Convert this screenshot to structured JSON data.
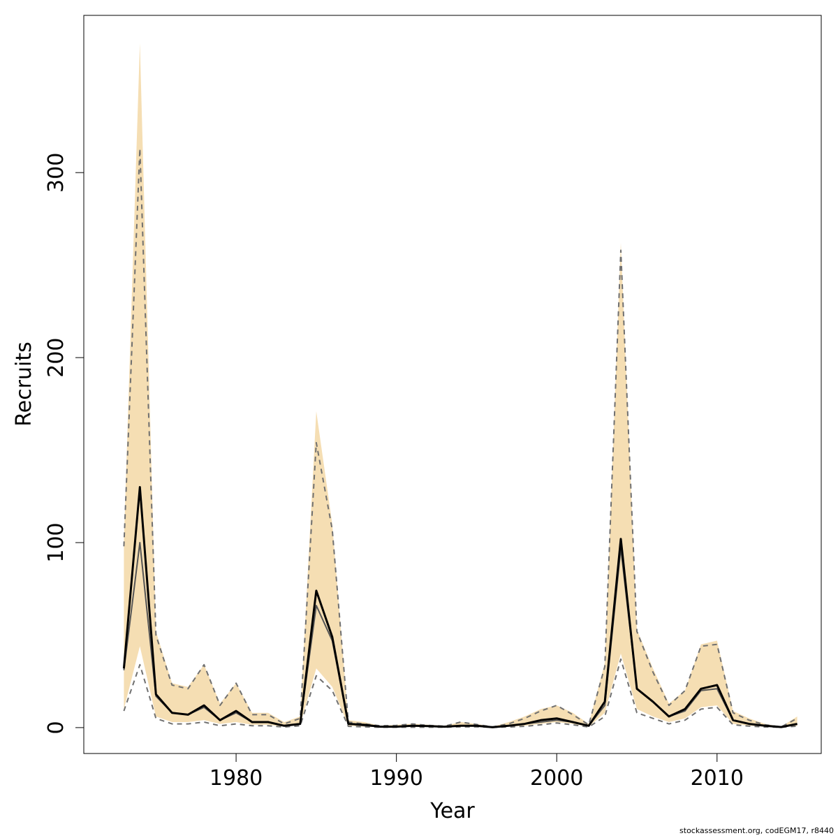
{
  "chart_data": {
    "type": "line",
    "title": "",
    "xlabel": "Year",
    "ylabel": "Recruits",
    "xlim": [
      1970.5,
      2016.5
    ],
    "ylim": [
      -14,
      385
    ],
    "x_ticks": [
      1980,
      1990,
      2000,
      2010
    ],
    "y_ticks": [
      0,
      100,
      200,
      300
    ],
    "grid": false,
    "legend": "none",
    "x": [
      1973,
      1974,
      1975,
      1976,
      1977,
      1978,
      1979,
      1980,
      1981,
      1982,
      1983,
      1984,
      1985,
      1986,
      1987,
      1988,
      1989,
      1990,
      1991,
      1992,
      1993,
      1994,
      1995,
      1996,
      1997,
      1998,
      1999,
      2000,
      2001,
      2002,
      2003,
      2004,
      2005,
      2006,
      2007,
      2008,
      2009,
      2010,
      2011,
      2012,
      2013,
      2014,
      2015
    ],
    "series": [
      {
        "role": "confidence-band",
        "color": "#f5deb3",
        "lower": [
          10,
          44,
          6,
          3,
          3,
          4,
          2,
          3,
          1.5,
          1.5,
          0.5,
          1.5,
          32,
          22,
          1,
          0.5,
          0.3,
          0.3,
          0.3,
          0.3,
          0.3,
          0.5,
          0.5,
          0.3,
          0.5,
          1,
          2,
          3,
          2,
          0.5,
          8,
          40,
          10,
          6,
          3,
          5,
          11,
          12,
          2,
          1,
          0.5,
          0.3,
          1
        ],
        "upper": [
          100,
          370,
          52,
          24,
          22,
          34,
          13,
          24,
          8,
          8,
          3,
          6,
          171,
          110,
          4,
          3,
          1,
          1.5,
          2,
          1.5,
          1,
          3,
          2,
          0.5,
          3,
          6,
          10,
          12,
          8,
          2,
          35,
          262,
          53,
          32,
          13,
          20,
          45,
          47,
          9,
          5,
          2,
          0.5,
          6
        ]
      },
      {
        "role": "upper-dashed",
        "color": "#707070",
        "values": [
          98,
          313,
          50,
          23,
          21,
          34,
          12,
          24,
          7,
          7,
          2,
          5,
          154,
          107,
          3,
          2,
          1,
          1.2,
          2,
          1.2,
          0.8,
          3,
          1.7,
          0.4,
          2,
          5,
          9,
          12,
          7,
          1.5,
          33,
          258,
          52,
          30,
          12,
          20,
          44,
          45,
          8,
          4,
          1.5,
          0.4,
          5
        ]
      },
      {
        "role": "lower-dashed",
        "color": "#707070",
        "values": [
          9,
          34,
          5,
          2,
          2,
          3,
          1,
          2,
          1,
          1,
          0.3,
          1,
          28,
          20,
          0.7,
          0.4,
          0.2,
          0.2,
          0.2,
          0.2,
          0.2,
          0.4,
          0.4,
          0.2,
          0.3,
          0.7,
          1.5,
          2.5,
          1.5,
          0.3,
          6,
          37,
          8,
          5,
          2,
          4,
          10,
          11,
          1.5,
          0.8,
          0.3,
          0.2,
          0.8
        ]
      },
      {
        "role": "median",
        "color": "#555555",
        "values": [
          31,
          100,
          17,
          8,
          7,
          11,
          4,
          8,
          3,
          3,
          1,
          2,
          66,
          47,
          2,
          1,
          0.5,
          0.5,
          1,
          0.8,
          0.4,
          1,
          0.8,
          0.2,
          1,
          2,
          3,
          4,
          3,
          1,
          12,
          97,
          21,
          14,
          6,
          9,
          20,
          21,
          4,
          2,
          1,
          0.3,
          2
        ]
      },
      {
        "role": "estimate",
        "color": "#000000",
        "values": [
          32,
          130,
          18,
          8,
          7,
          12,
          4,
          9,
          3,
          3,
          1,
          2,
          74,
          49,
          2,
          1.5,
          0.5,
          0.5,
          1,
          0.8,
          0.5,
          1,
          1,
          0.2,
          1,
          2,
          4,
          5,
          3,
          1,
          14,
          102,
          21,
          14,
          6,
          10,
          21,
          23,
          4,
          2,
          1,
          0.3,
          2
        ]
      }
    ]
  },
  "credit": "stockassessment.org, codEGM17, r8440"
}
